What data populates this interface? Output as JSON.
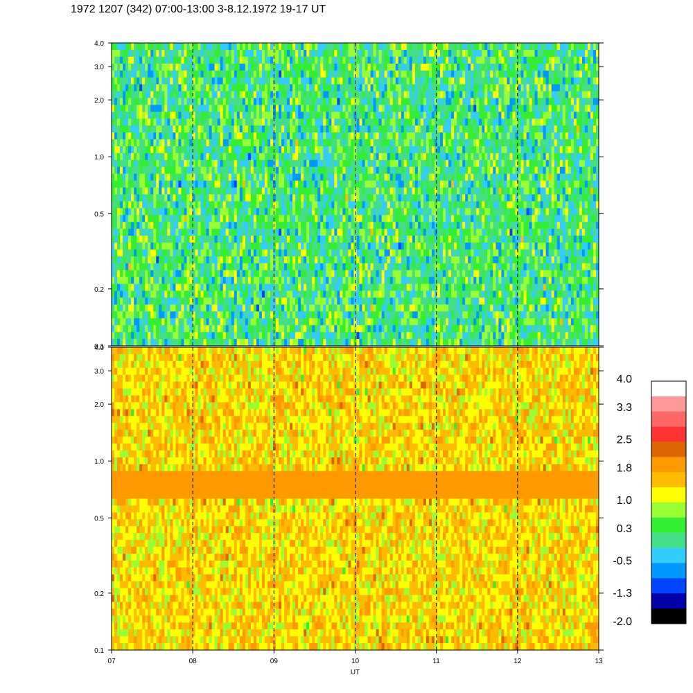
{
  "title": "1972 1207 (342) 07:00-13:00 3-8.12.1972  19-17 UT",
  "chart_data": [
    {
      "type": "heatmap",
      "panel": "top",
      "title": "",
      "x_range": [
        7,
        13
      ],
      "y_range": [
        0.1,
        4.0
      ],
      "y_scale": "log",
      "y_ticks": [
        "4.0",
        "3.0",
        "2.0",
        "1.0",
        "0.5",
        "0.2",
        "0.1"
      ],
      "y_tick_values": [
        4.0,
        3.0,
        2.0,
        1.0,
        0.5,
        0.2,
        0.1
      ],
      "dominant_levels": [
        -0.5,
        0.3,
        1.0
      ],
      "dashed_x_lines": [
        8,
        9,
        10,
        11,
        12
      ]
    },
    {
      "type": "heatmap",
      "panel": "bottom",
      "title": "",
      "x_range": [
        7,
        13
      ],
      "y_range": [
        0.1,
        4.0
      ],
      "y_scale": "log",
      "y_ticks": [
        "4.0",
        "3.0",
        "2.0",
        "1.0",
        "0.5",
        "0.2",
        "0.1"
      ],
      "y_tick_values": [
        4.0,
        3.0,
        2.0,
        1.0,
        0.5,
        0.2,
        0.1
      ],
      "dominant_levels": [
        1.0,
        1.8
      ],
      "band_y_range": [
        0.65,
        0.85
      ],
      "xlabel": "UT",
      "x_ticks": [
        "07",
        "08",
        "09",
        "10",
        "11",
        "12",
        "13"
      ],
      "x_tick_values": [
        7,
        8,
        9,
        10,
        11,
        12,
        13
      ],
      "dashed_x_lines": [
        8,
        9,
        10,
        11,
        12
      ]
    }
  ],
  "colorbar": {
    "labels": [
      "4.0",
      "3.3",
      "2.5",
      "1.8",
      "1.0",
      "0.3",
      "-0.5",
      "-1.3",
      "-2.0"
    ],
    "colors": [
      "#ffffff",
      "#ff9999",
      "#ff6666",
      "#ff3333",
      "#dd6600",
      "#ff9900",
      "#ffbb00",
      "#ffff00",
      "#99ff33",
      "#33ee33",
      "#44dd88",
      "#33ccff",
      "#0099ff",
      "#0044ff",
      "#0000aa",
      "#000000"
    ]
  }
}
